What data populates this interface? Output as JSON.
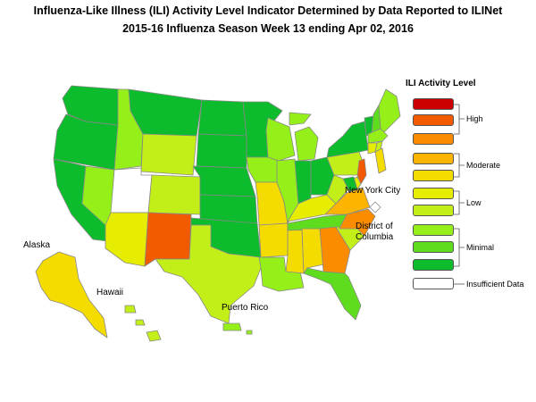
{
  "title_line1": "Influenza-Like Illness (ILI) Activity Level Indicator Determined by Data Reported to ILINet",
  "title_line2": "2015-16  Influenza Season Week  13 ending Apr 02, 2016",
  "legend": {
    "title": "ILI Activity Level",
    "levels": [
      {
        "level": 10,
        "color": "#cc0000"
      },
      {
        "level": 9,
        "color": "#f25a00"
      },
      {
        "level": 8,
        "color": "#fb8c00"
      },
      {
        "level": 7,
        "color": "#fcb400"
      },
      {
        "level": 6,
        "color": "#f5dc00"
      },
      {
        "level": 5,
        "color": "#e6ed00"
      },
      {
        "level": 4,
        "color": "#c3ef18"
      },
      {
        "level": 3,
        "color": "#94f018"
      },
      {
        "level": 2,
        "color": "#5fdc1e"
      },
      {
        "level": 1,
        "color": "#0cbc2c"
      },
      {
        "level": 0,
        "color": "#ffffff"
      }
    ],
    "group_labels": {
      "high": "High",
      "moderate": "Moderate",
      "low": "Low",
      "minimal": "Minimal",
      "insufficient": "Insufficient Data"
    }
  },
  "map_labels": {
    "alaska": "Alaska",
    "hawaii": "Hawaii",
    "puerto_rico": "Puerto Rico",
    "nyc": "New York City",
    "dc_line1": "District of",
    "dc_line2": "Columbia"
  },
  "states": {
    "WA": 1,
    "OR": 1,
    "CA": 1,
    "NV": 3,
    "ID": 3,
    "MT": 1,
    "WY": 4,
    "UT": 0,
    "AZ": 5,
    "CO": 4,
    "NM": 9,
    "ND": 1,
    "SD": 1,
    "NE": 1,
    "KS": 1,
    "OK": 1,
    "TX": 4,
    "MN": 1,
    "IA": 3,
    "MO": 6,
    "AR": 6,
    "LA": 3,
    "WI": 3,
    "IL": 3,
    "MS": 6,
    "MI": 3,
    "IN": 1,
    "KY": 5,
    "TN": 2,
    "AL": 6,
    "OH": 1,
    "GA": 8,
    "FL": 2,
    "SC": 4,
    "NC": 8,
    "VA": 7,
    "WV": 4,
    "PA": 4,
    "NY": 1,
    "NJ": 9,
    "DE": 5,
    "MD": 1,
    "VT": 1,
    "NH": 2,
    "ME": 3,
    "MA": 3,
    "RI": 4,
    "CT": 5,
    "AK": 6,
    "HI": 4,
    "PR": 3,
    "NYC": 6,
    "DC": 0
  }
}
